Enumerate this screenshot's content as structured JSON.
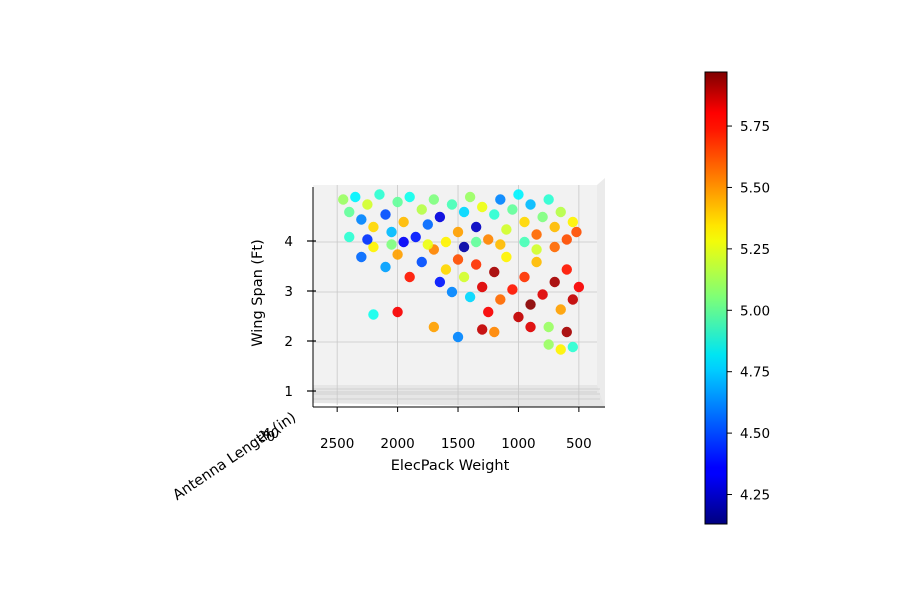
{
  "chart_data": {
    "type": "scatter",
    "projection": "3d",
    "xlabel": "ElecPack Weight",
    "ylabel": "Antenna Length (in)",
    "zlabel": "Wing Span (Ft)",
    "x_tick_labels": [
      "2500",
      "2000",
      "1500",
      "1000",
      "500"
    ],
    "x_ticks": [
      2500,
      2000,
      1500,
      1000,
      500
    ],
    "y_tick_labels": [
      "20",
      "40"
    ],
    "z_tick_labels": [
      "1",
      "2",
      "3",
      "4"
    ],
    "z_ticks": [
      1,
      2,
      3,
      4
    ],
    "xlim": [
      2700,
      350
    ],
    "zlim": [
      1,
      5
    ],
    "colorbar": {
      "colormap": "jet",
      "range": [
        4.13,
        5.97
      ],
      "tick_labels": [
        "4.25",
        "4.50",
        "4.75",
        "5.00",
        "5.25",
        "5.50",
        "5.75"
      ],
      "ticks": [
        4.25,
        4.5,
        4.75,
        5.0,
        5.25,
        5.5,
        5.75
      ]
    },
    "color_variable_note": "",
    "grid": true,
    "points": [
      {
        "x": 2450,
        "z": 4.85,
        "c": 5.1
      },
      {
        "x": 2400,
        "z": 4.6,
        "c": 5.0
      },
      {
        "x": 2350,
        "z": 4.9,
        "c": 4.8
      },
      {
        "x": 2300,
        "z": 4.45,
        "c": 4.6
      },
      {
        "x": 2250,
        "z": 4.75,
        "c": 5.2
      },
      {
        "x": 2200,
        "z": 4.3,
        "c": 5.35
      },
      {
        "x": 2150,
        "z": 4.95,
        "c": 4.9
      },
      {
        "x": 2100,
        "z": 4.55,
        "c": 4.5
      },
      {
        "x": 2050,
        "z": 4.2,
        "c": 4.7
      },
      {
        "x": 2000,
        "z": 4.8,
        "c": 5.0
      },
      {
        "x": 1950,
        "z": 4.4,
        "c": 5.4
      },
      {
        "x": 1900,
        "z": 4.9,
        "c": 4.85
      },
      {
        "x": 1850,
        "z": 4.1,
        "c": 4.4
      },
      {
        "x": 1800,
        "z": 4.65,
        "c": 5.15
      },
      {
        "x": 1750,
        "z": 4.35,
        "c": 4.55
      },
      {
        "x": 1700,
        "z": 4.85,
        "c": 5.05
      },
      {
        "x": 1650,
        "z": 4.5,
        "c": 4.3
      },
      {
        "x": 1600,
        "z": 4.0,
        "c": 5.3
      },
      {
        "x": 1550,
        "z": 4.75,
        "c": 4.95
      },
      {
        "x": 1500,
        "z": 4.2,
        "c": 5.45
      },
      {
        "x": 1450,
        "z": 4.6,
        "c": 4.75
      },
      {
        "x": 1400,
        "z": 4.9,
        "c": 5.1
      },
      {
        "x": 1350,
        "z": 4.3,
        "c": 4.25
      },
      {
        "x": 1300,
        "z": 4.7,
        "c": 5.25
      },
      {
        "x": 1250,
        "z": 4.05,
        "c": 5.5
      },
      {
        "x": 1200,
        "z": 4.55,
        "c": 4.9
      },
      {
        "x": 1150,
        "z": 4.85,
        "c": 4.6
      },
      {
        "x": 1100,
        "z": 4.25,
        "c": 5.2
      },
      {
        "x": 1050,
        "z": 4.65,
        "c": 5.0
      },
      {
        "x": 1000,
        "z": 4.95,
        "c": 4.8
      },
      {
        "x": 950,
        "z": 4.4,
        "c": 5.35
      },
      {
        "x": 900,
        "z": 4.75,
        "c": 4.7
      },
      {
        "x": 850,
        "z": 4.15,
        "c": 5.55
      },
      {
        "x": 800,
        "z": 4.5,
        "c": 5.05
      },
      {
        "x": 750,
        "z": 4.85,
        "c": 4.9
      },
      {
        "x": 700,
        "z": 4.3,
        "c": 5.4
      },
      {
        "x": 650,
        "z": 4.6,
        "c": 5.15
      },
      {
        "x": 600,
        "z": 4.05,
        "c": 5.6
      },
      {
        "x": 550,
        "z": 4.4,
        "c": 5.3
      },
      {
        "x": 2300,
        "z": 3.7,
        "c": 4.55
      },
      {
        "x": 2200,
        "z": 3.9,
        "c": 5.3
      },
      {
        "x": 2100,
        "z": 3.5,
        "c": 4.65
      },
      {
        "x": 2000,
        "z": 3.75,
        "c": 5.45
      },
      {
        "x": 1900,
        "z": 3.3,
        "c": 5.7
      },
      {
        "x": 1800,
        "z": 3.6,
        "c": 4.5
      },
      {
        "x": 1700,
        "z": 3.85,
        "c": 5.5
      },
      {
        "x": 1650,
        "z": 3.2,
        "c": 4.4
      },
      {
        "x": 1600,
        "z": 3.45,
        "c": 5.35
      },
      {
        "x": 1550,
        "z": 3.0,
        "c": 4.6
      },
      {
        "x": 1500,
        "z": 3.65,
        "c": 5.6
      },
      {
        "x": 1450,
        "z": 3.3,
        "c": 5.2
      },
      {
        "x": 1400,
        "z": 2.9,
        "c": 4.75
      },
      {
        "x": 1350,
        "z": 3.55,
        "c": 5.65
      },
      {
        "x": 1300,
        "z": 3.1,
        "c": 5.8
      },
      {
        "x": 1250,
        "z": 2.6,
        "c": 5.75
      },
      {
        "x": 1200,
        "z": 3.4,
        "c": 5.9
      },
      {
        "x": 1150,
        "z": 2.85,
        "c": 5.55
      },
      {
        "x": 1100,
        "z": 3.7,
        "c": 5.3
      },
      {
        "x": 1050,
        "z": 3.05,
        "c": 5.7
      },
      {
        "x": 1000,
        "z": 2.5,
        "c": 5.85
      },
      {
        "x": 950,
        "z": 3.3,
        "c": 5.65
      },
      {
        "x": 900,
        "z": 2.75,
        "c": 5.95
      },
      {
        "x": 850,
        "z": 3.6,
        "c": 5.4
      },
      {
        "x": 800,
        "z": 2.95,
        "c": 5.8
      },
      {
        "x": 750,
        "z": 2.3,
        "c": 5.1
      },
      {
        "x": 700,
        "z": 3.2,
        "c": 5.9
      },
      {
        "x": 650,
        "z": 2.65,
        "c": 5.45
      },
      {
        "x": 600,
        "z": 3.45,
        "c": 5.7
      },
      {
        "x": 550,
        "z": 2.85,
        "c": 5.85
      },
      {
        "x": 500,
        "z": 3.1,
        "c": 5.75
      },
      {
        "x": 2200,
        "z": 2.55,
        "c": 4.85
      },
      {
        "x": 2000,
        "z": 2.6,
        "c": 5.75
      },
      {
        "x": 1700,
        "z": 2.3,
        "c": 5.45
      },
      {
        "x": 1500,
        "z": 2.1,
        "c": 4.6
      },
      {
        "x": 1300,
        "z": 2.25,
        "c": 5.85
      },
      {
        "x": 1200,
        "z": 2.2,
        "c": 5.5
      },
      {
        "x": 900,
        "z": 2.3,
        "c": 5.8
      },
      {
        "x": 750,
        "z": 1.95,
        "c": 5.1
      },
      {
        "x": 650,
        "z": 1.85,
        "c": 5.3
      },
      {
        "x": 600,
        "z": 2.2,
        "c": 5.9
      },
      {
        "x": 550,
        "z": 1.9,
        "c": 4.9
      },
      {
        "x": 2400,
        "z": 4.1,
        "c": 4.9
      },
      {
        "x": 2250,
        "z": 4.05,
        "c": 4.45
      },
      {
        "x": 2050,
        "z": 3.95,
        "c": 5.05
      },
      {
        "x": 1950,
        "z": 4.0,
        "c": 4.35
      },
      {
        "x": 1750,
        "z": 3.95,
        "c": 5.25
      },
      {
        "x": 1450,
        "z": 3.9,
        "c": 4.2
      },
      {
        "x": 1350,
        "z": 4.0,
        "c": 5.0
      },
      {
        "x": 1150,
        "z": 3.95,
        "c": 5.4
      },
      {
        "x": 950,
        "z": 4.0,
        "c": 4.95
      },
      {
        "x": 850,
        "z": 3.85,
        "c": 5.2
      },
      {
        "x": 700,
        "z": 3.9,
        "c": 5.55
      },
      {
        "x": 520,
        "z": 4.2,
        "c": 5.6
      }
    ]
  }
}
